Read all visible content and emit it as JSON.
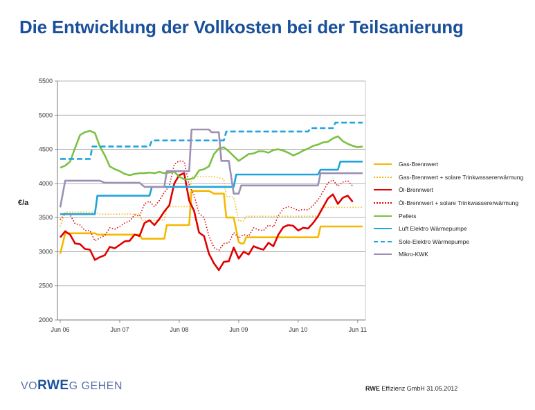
{
  "page": {
    "title": "Die Entwicklung der Vollkosten bei der Teilsanierung"
  },
  "footer": {
    "logo_prefix": "VO",
    "logo_brand": "RWE",
    "logo_suffix": "G GEHEN",
    "company": "RWE",
    "company_rest": "Effizienz GmbH",
    "date": "31.05.2012"
  },
  "chart_data": {
    "type": "line",
    "ylabel": "€/a",
    "xlabel": "",
    "ylim": [
      2000,
      5500
    ],
    "yticks": [
      2000,
      2500,
      3000,
      3500,
      4000,
      4500,
      5000,
      5500
    ],
    "xlim": [
      0,
      60
    ],
    "x_tick_labels": [
      {
        "label": "Jun 06",
        "x": 0
      },
      {
        "label": "Jun 07",
        "x": 12
      },
      {
        "label": "Jun 08",
        "x": 24
      },
      {
        "label": "Jun 09",
        "x": 36
      },
      {
        "label": "Jun 10",
        "x": 48
      },
      {
        "label": "Jun 11",
        "x": 60
      }
    ],
    "grid": "horizontal",
    "legend_position": "right",
    "series": [
      {
        "name": "Gas-Brennwert",
        "color": "#f5b800",
        "style": "solid",
        "points": [
          [
            0,
            2970
          ],
          [
            1,
            3270
          ],
          [
            7,
            3270
          ],
          [
            7.5,
            3250
          ],
          [
            16,
            3250
          ],
          [
            16.5,
            3190
          ],
          [
            21,
            3190
          ],
          [
            21.5,
            3390
          ],
          [
            26,
            3390
          ],
          [
            26.5,
            3890
          ],
          [
            30,
            3890
          ],
          [
            31,
            3850
          ],
          [
            33,
            3850
          ],
          [
            33.5,
            3500
          ],
          [
            35,
            3500
          ],
          [
            36,
            3140
          ],
          [
            36.5,
            3120
          ],
          [
            37,
            3120
          ],
          [
            37.5,
            3210
          ],
          [
            52,
            3210
          ],
          [
            52.5,
            3370
          ],
          [
            61,
            3370
          ]
        ]
      },
      {
        "name": "Gas-Brennwert + solare Trinkwassererwärmung",
        "color": "#f5b800",
        "style": "dotted",
        "points": [
          [
            0,
            3370
          ],
          [
            1,
            3580
          ],
          [
            7,
            3580
          ],
          [
            8,
            3550
          ],
          [
            16,
            3550
          ],
          [
            16.5,
            3460
          ],
          [
            21,
            3460
          ],
          [
            21.5,
            3660
          ],
          [
            26,
            3660
          ],
          [
            26.5,
            4100
          ],
          [
            31,
            4100
          ],
          [
            33,
            4060
          ],
          [
            33.5,
            3810
          ],
          [
            35,
            3800
          ],
          [
            36,
            3450
          ],
          [
            37,
            3450
          ],
          [
            37.5,
            3520
          ],
          [
            52,
            3520
          ],
          [
            52.5,
            3650
          ],
          [
            61,
            3650
          ]
        ]
      },
      {
        "name": "Öl-Brennwert",
        "color": "#e00000",
        "style": "solid",
        "points": [
          [
            0,
            3210
          ],
          [
            1,
            3300
          ],
          [
            2,
            3250
          ],
          [
            3,
            3120
          ],
          [
            4,
            3110
          ],
          [
            5,
            3040
          ],
          [
            6,
            3030
          ],
          [
            7,
            2880
          ],
          [
            8,
            2920
          ],
          [
            9,
            2950
          ],
          [
            10,
            3070
          ],
          [
            11,
            3050
          ],
          [
            12,
            3100
          ],
          [
            13,
            3150
          ],
          [
            14,
            3160
          ],
          [
            15,
            3250
          ],
          [
            16,
            3230
          ],
          [
            17,
            3420
          ],
          [
            18,
            3460
          ],
          [
            19,
            3390
          ],
          [
            20,
            3480
          ],
          [
            21,
            3590
          ],
          [
            22,
            3680
          ],
          [
            23,
            4000
          ],
          [
            24,
            4120
          ],
          [
            25,
            4150
          ],
          [
            26,
            3750
          ],
          [
            27,
            3600
          ],
          [
            28,
            3280
          ],
          [
            29,
            3230
          ],
          [
            30,
            2970
          ],
          [
            31,
            2830
          ],
          [
            32,
            2730
          ],
          [
            33,
            2850
          ],
          [
            34,
            2860
          ],
          [
            35,
            3060
          ],
          [
            36,
            2900
          ],
          [
            37,
            3000
          ],
          [
            38,
            2960
          ],
          [
            39,
            3080
          ],
          [
            40,
            3050
          ],
          [
            41,
            3030
          ],
          [
            42,
            3130
          ],
          [
            43,
            3080
          ],
          [
            44,
            3250
          ],
          [
            45,
            3360
          ],
          [
            46,
            3390
          ],
          [
            47,
            3380
          ],
          [
            48,
            3310
          ],
          [
            49,
            3350
          ],
          [
            50,
            3340
          ],
          [
            51,
            3420
          ],
          [
            52,
            3520
          ],
          [
            53,
            3650
          ],
          [
            54,
            3780
          ],
          [
            55,
            3840
          ],
          [
            56,
            3700
          ],
          [
            57,
            3790
          ],
          [
            58,
            3820
          ],
          [
            59,
            3730
          ]
        ]
      },
      {
        "name": "Öl-Brennwert + solare Trinkwassererwärmung",
        "color": "#e00000",
        "style": "dotted",
        "points": [
          [
            0,
            3470
          ],
          [
            1,
            3560
          ],
          [
            2,
            3540
          ],
          [
            3,
            3410
          ],
          [
            4,
            3390
          ],
          [
            5,
            3310
          ],
          [
            6,
            3310
          ],
          [
            7,
            3160
          ],
          [
            8,
            3200
          ],
          [
            9,
            3240
          ],
          [
            10,
            3350
          ],
          [
            11,
            3330
          ],
          [
            12,
            3370
          ],
          [
            13,
            3420
          ],
          [
            14,
            3450
          ],
          [
            15,
            3540
          ],
          [
            16,
            3520
          ],
          [
            17,
            3700
          ],
          [
            18,
            3740
          ],
          [
            19,
            3660
          ],
          [
            20,
            3750
          ],
          [
            21,
            3870
          ],
          [
            22,
            3960
          ],
          [
            23,
            4280
          ],
          [
            24,
            4330
          ],
          [
            25,
            4320
          ],
          [
            26,
            3980
          ],
          [
            27,
            3830
          ],
          [
            28,
            3560
          ],
          [
            29,
            3500
          ],
          [
            30,
            3230
          ],
          [
            31,
            3060
          ],
          [
            32,
            3020
          ],
          [
            33,
            3120
          ],
          [
            34,
            3130
          ],
          [
            35,
            3280
          ],
          [
            36,
            3200
          ],
          [
            37,
            3250
          ],
          [
            38,
            3230
          ],
          [
            39,
            3350
          ],
          [
            40,
            3320
          ],
          [
            41,
            3310
          ],
          [
            42,
            3390
          ],
          [
            43,
            3360
          ],
          [
            44,
            3530
          ],
          [
            45,
            3630
          ],
          [
            46,
            3660
          ],
          [
            47,
            3640
          ],
          [
            48,
            3600
          ],
          [
            49,
            3620
          ],
          [
            50,
            3610
          ],
          [
            51,
            3680
          ],
          [
            52,
            3760
          ],
          [
            53,
            3880
          ],
          [
            54,
            4010
          ],
          [
            55,
            4050
          ],
          [
            56,
            3960
          ],
          [
            57,
            4020
          ],
          [
            58,
            4040
          ],
          [
            59,
            3960
          ]
        ]
      },
      {
        "name": "Pellets",
        "color": "#7ac143",
        "style": "solid",
        "points": [
          [
            0,
            4230
          ],
          [
            1,
            4260
          ],
          [
            2,
            4320
          ],
          [
            3,
            4520
          ],
          [
            4,
            4710
          ],
          [
            5,
            4750
          ],
          [
            6,
            4770
          ],
          [
            7,
            4740
          ],
          [
            8,
            4540
          ],
          [
            9,
            4410
          ],
          [
            10,
            4250
          ],
          [
            11,
            4210
          ],
          [
            12,
            4180
          ],
          [
            13,
            4140
          ],
          [
            14,
            4120
          ],
          [
            15,
            4140
          ],
          [
            16,
            4150
          ],
          [
            17,
            4150
          ],
          [
            18,
            4160
          ],
          [
            19,
            4150
          ],
          [
            20,
            4170
          ],
          [
            21,
            4150
          ],
          [
            22,
            4160
          ],
          [
            23,
            4170
          ],
          [
            24,
            4100
          ],
          [
            25,
            4060
          ],
          [
            26,
            4060
          ],
          [
            27,
            4080
          ],
          [
            28,
            4190
          ],
          [
            29,
            4210
          ],
          [
            30,
            4250
          ],
          [
            31,
            4430
          ],
          [
            32,
            4510
          ],
          [
            33,
            4530
          ],
          [
            34,
            4470
          ],
          [
            35,
            4400
          ],
          [
            36,
            4330
          ],
          [
            37,
            4380
          ],
          [
            38,
            4430
          ],
          [
            39,
            4440
          ],
          [
            40,
            4470
          ],
          [
            41,
            4470
          ],
          [
            42,
            4450
          ],
          [
            43,
            4490
          ],
          [
            44,
            4500
          ],
          [
            45,
            4480
          ],
          [
            46,
            4450
          ],
          [
            47,
            4410
          ],
          [
            48,
            4440
          ],
          [
            49,
            4480
          ],
          [
            50,
            4510
          ],
          [
            51,
            4550
          ],
          [
            52,
            4570
          ],
          [
            53,
            4600
          ],
          [
            54,
            4610
          ],
          [
            55,
            4660
          ],
          [
            56,
            4690
          ],
          [
            57,
            4620
          ],
          [
            58,
            4580
          ],
          [
            59,
            4550
          ],
          [
            60,
            4530
          ],
          [
            61,
            4540
          ]
        ]
      },
      {
        "name": "Luft Elektro Wärmepumpe",
        "color": "#1fa3dc",
        "style": "solid",
        "points": [
          [
            0,
            3550
          ],
          [
            7,
            3550
          ],
          [
            7.5,
            3820
          ],
          [
            18,
            3820
          ],
          [
            18.5,
            3950
          ],
          [
            35,
            3950
          ],
          [
            35.5,
            4130
          ],
          [
            52,
            4130
          ],
          [
            52.5,
            4200
          ],
          [
            56,
            4200
          ],
          [
            56.5,
            4320
          ],
          [
            61,
            4320
          ]
        ]
      },
      {
        "name": "Sole-Elektro Wärmepumpe",
        "color": "#1fa3dc",
        "style": "dashed",
        "points": [
          [
            0,
            4360
          ],
          [
            6,
            4360
          ],
          [
            6.5,
            4540
          ],
          [
            18,
            4540
          ],
          [
            18.5,
            4630
          ],
          [
            33,
            4630
          ],
          [
            33.5,
            4760
          ],
          [
            50,
            4760
          ],
          [
            50.5,
            4810
          ],
          [
            55,
            4810
          ],
          [
            55.5,
            4890
          ],
          [
            61,
            4890
          ]
        ]
      },
      {
        "name": "Mikro-KWK",
        "color": "#9d8fb5",
        "style": "solid",
        "points": [
          [
            0,
            3650
          ],
          [
            1,
            4040
          ],
          [
            8,
            4040
          ],
          [
            9,
            4010
          ],
          [
            16,
            4010
          ],
          [
            17,
            3950
          ],
          [
            21,
            3950
          ],
          [
            21.5,
            4180
          ],
          [
            26,
            4180
          ],
          [
            26.5,
            4790
          ],
          [
            30,
            4790
          ],
          [
            30.5,
            4750
          ],
          [
            32,
            4750
          ],
          [
            32.5,
            4330
          ],
          [
            34,
            4330
          ],
          [
            35,
            3850
          ],
          [
            36,
            3850
          ],
          [
            36.5,
            3970
          ],
          [
            52,
            3970
          ],
          [
            52.5,
            4150
          ],
          [
            61,
            4150
          ]
        ]
      }
    ]
  }
}
